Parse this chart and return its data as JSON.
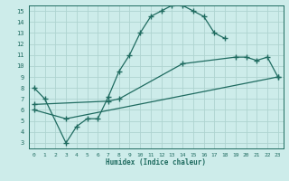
{
  "xlabel": "Humidex (Indice chaleur)",
  "ylabel": "",
  "bg_color": "#cdecea",
  "grid_color": "#aed4d0",
  "line_color": "#1f6b60",
  "xlim": [
    -0.5,
    23.5
  ],
  "ylim": [
    2.5,
    15.5
  ],
  "xticks": [
    0,
    1,
    2,
    3,
    4,
    5,
    6,
    7,
    8,
    9,
    10,
    11,
    12,
    13,
    14,
    15,
    16,
    17,
    18,
    19,
    20,
    21,
    22,
    23
  ],
  "yticks": [
    3,
    4,
    5,
    6,
    7,
    8,
    9,
    10,
    11,
    12,
    13,
    14,
    15
  ],
  "series1_x": [
    0,
    1,
    3,
    4,
    5,
    6,
    7,
    8,
    9,
    10,
    11,
    12,
    13,
    14,
    15,
    16,
    17,
    18
  ],
  "series1_y": [
    8.0,
    7.0,
    3.0,
    4.5,
    5.2,
    5.2,
    7.2,
    9.5,
    11.0,
    13.0,
    14.5,
    15.0,
    15.5,
    15.5,
    15.0,
    14.5,
    13.0,
    12.5
  ],
  "series2_x": [
    0,
    7,
    8,
    14,
    19,
    20,
    21,
    22,
    23
  ],
  "series2_y": [
    6.5,
    6.8,
    7.0,
    10.2,
    10.8,
    10.8,
    10.5,
    10.8,
    9.0
  ],
  "series3_x": [
    0,
    3,
    23
  ],
  "series3_y": [
    6.0,
    5.2,
    9.0
  ]
}
